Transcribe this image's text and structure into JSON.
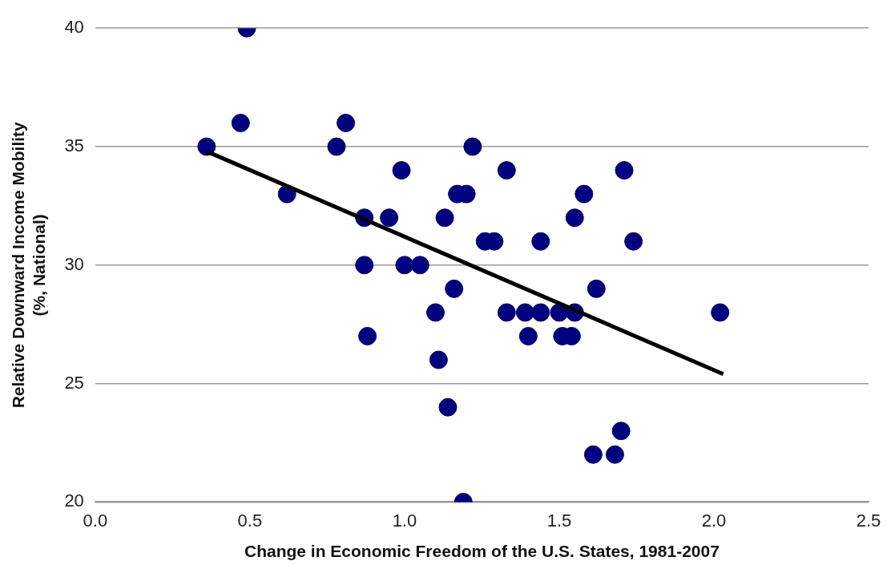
{
  "chart_data": {
    "type": "scatter",
    "xlabel": "Change in Economic Freedom of the U.S. States, 1981-2007",
    "ylabel": "Relative Downward Income Mobility\n(%, National)",
    "xlim": [
      0,
      2.5
    ],
    "xticks": [
      {
        "value": 0,
        "label": "0.0"
      },
      {
        "value": 0.5,
        "label": "0.5"
      },
      {
        "value": 1,
        "label": "1.0"
      },
      {
        "value": 1.5,
        "label": "1.5"
      },
      {
        "value": 2,
        "label": "2.0"
      },
      {
        "value": 2.5,
        "label": "2.5"
      }
    ],
    "ylim": [
      20,
      40
    ],
    "yticks": [
      20,
      25,
      30,
      35,
      40
    ],
    "grid": "y",
    "legend": false,
    "marker": "circle",
    "series": [
      {
        "type": "scatter",
        "color": "#000080",
        "x": [
          0.49,
          0.47,
          0.36,
          0.81,
          0.78,
          0.62,
          0.87,
          0.87,
          0.88,
          0.95,
          0.99,
          1.0,
          1.05,
          1.1,
          1.11,
          1.12,
          1.14,
          1.13,
          1.16,
          1.17,
          1.2,
          1.19,
          1.22,
          1.26,
          1.29,
          1.33,
          1.33,
          1.39,
          1.4,
          1.44,
          1.44,
          1.5,
          1.51,
          1.54,
          1.55,
          1.55,
          1.58,
          1.62,
          1.61,
          1.71,
          1.68,
          1.7,
          1.74,
          2.02
        ],
        "values": [
          40,
          36,
          35,
          36,
          35,
          33,
          32,
          30,
          27,
          32,
          34,
          30,
          30,
          28,
          26,
          null,
          24,
          32,
          29,
          33,
          33,
          20,
          35,
          31,
          31,
          34,
          28,
          28,
          27,
          31,
          28,
          28,
          27,
          27,
          28,
          32,
          33,
          29,
          22,
          34,
          22,
          23,
          31,
          28
        ]
      },
      {
        "type": "line",
        "color": "#000000",
        "x": [
          0.36,
          2.03
        ],
        "values": [
          34.8,
          25.4
        ],
        "marker": "none"
      }
    ]
  }
}
